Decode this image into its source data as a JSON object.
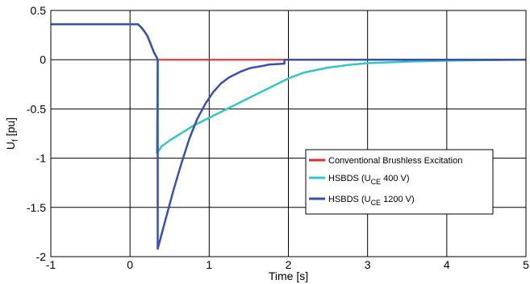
{
  "chart_data": {
    "type": "line",
    "title": "",
    "xlabel": "Time [s]",
    "ylabel_main": "U",
    "ylabel_sub": "f",
    "ylabel_unit": " [pu]",
    "xlim": [
      -1,
      5
    ],
    "ylim": [
      -2,
      0.5
    ],
    "x_ticks": [
      -1,
      0,
      1,
      2,
      3,
      4,
      5
    ],
    "x_tick_labels": [
      "-1",
      "0",
      "1",
      "2",
      "3",
      "4",
      "5"
    ],
    "y_ticks": [
      0.5,
      0,
      -0.5,
      -1,
      -1.5,
      -2
    ],
    "y_tick_labels": [
      "0.5",
      "0",
      "-0.5",
      "-1",
      "-1.5",
      "-2"
    ],
    "grid": true,
    "legend_position": "lower-right",
    "series": [
      {
        "name": "Conventional Brushless Excitation",
        "legend": {
          "main": "Conventional Brushless Excitation",
          "sub": "",
          "tail": ""
        },
        "color": "#e8262b",
        "x": [
          -1,
          0.1,
          0.14,
          0.18,
          0.22,
          0.26,
          0.3,
          0.34,
          0.35,
          1,
          2,
          3,
          4,
          5
        ],
        "y": [
          0.36,
          0.36,
          0.33,
          0.29,
          0.24,
          0.16,
          0.08,
          0.02,
          0.0,
          0.0,
          0.0,
          0.0,
          0.0,
          0.0
        ]
      },
      {
        "name": "HSBDS (UCE 400 V)",
        "legend": {
          "main": "HSBDS (U",
          "sub": "CE",
          "tail": "  400 V)"
        },
        "color": "#33c6c6",
        "x": [
          -1,
          0.1,
          0.14,
          0.18,
          0.22,
          0.26,
          0.3,
          0.34,
          0.35,
          0.34,
          0.4,
          0.5,
          0.6,
          0.7,
          0.8,
          0.9,
          1.0,
          1.2,
          1.4,
          1.6,
          1.8,
          2.0,
          2.2,
          2.5,
          2.8,
          3.0,
          3.5,
          4.0,
          4.5,
          5.0
        ],
        "y": [
          0.36,
          0.36,
          0.33,
          0.29,
          0.24,
          0.16,
          0.08,
          0.02,
          0.0,
          -0.95,
          -0.88,
          -0.82,
          -0.77,
          -0.72,
          -0.67,
          -0.63,
          -0.59,
          -0.51,
          -0.43,
          -0.35,
          -0.27,
          -0.19,
          -0.13,
          -0.08,
          -0.05,
          -0.035,
          -0.02,
          -0.01,
          -0.005,
          0.0
        ]
      },
      {
        "name": "HSBDS (UCE 1200 V)",
        "legend": {
          "main": "HSBDS (U",
          "sub": "CE",
          "tail": "  1200 V)"
        },
        "color": "#3b4fb0",
        "x": [
          -1,
          0.1,
          0.14,
          0.18,
          0.22,
          0.26,
          0.3,
          0.34,
          0.35,
          0.35,
          0.45,
          0.55,
          0.65,
          0.75,
          0.85,
          0.95,
          1.05,
          1.15,
          1.25,
          1.3,
          1.4,
          1.5,
          1.55,
          1.7,
          1.75,
          1.95,
          1.95,
          2.5,
          3.0,
          4.0,
          5.0
        ],
        "y": [
          0.36,
          0.36,
          0.33,
          0.29,
          0.24,
          0.16,
          0.08,
          0.02,
          0.0,
          -1.92,
          -1.62,
          -1.32,
          -1.05,
          -0.8,
          -0.6,
          -0.45,
          -0.33,
          -0.24,
          -0.18,
          -0.16,
          -0.12,
          -0.09,
          -0.08,
          -0.06,
          -0.05,
          -0.04,
          0.0,
          0.0,
          0.0,
          0.0,
          0.0
        ]
      }
    ]
  }
}
